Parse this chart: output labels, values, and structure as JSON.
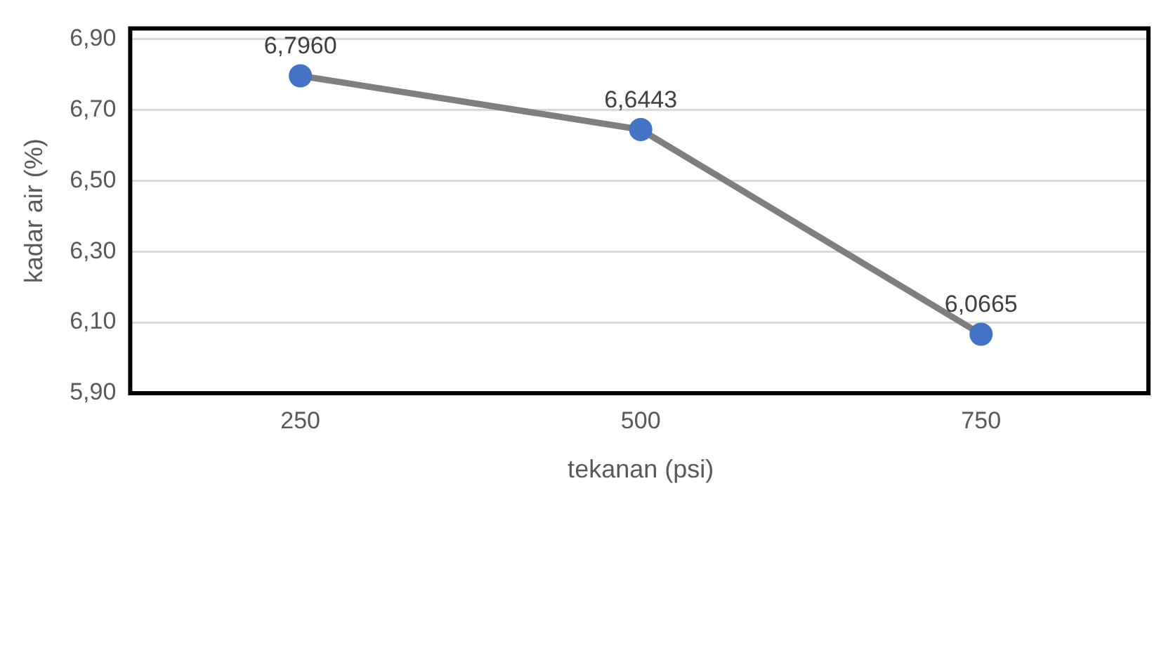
{
  "chart_data": {
    "type": "line",
    "xlabel": "tekanan (psi)",
    "ylabel": "kadar air (%)",
    "categories": [
      "250",
      "500",
      "750"
    ],
    "series": [
      {
        "color": "#7f7f7f",
        "colors": [
          "#4472c4",
          "#4472c4",
          "#4472c4"
        ],
        "values": [
          6.796,
          6.6443,
          6.0665
        ],
        "value_labels": [
          "6,7960",
          "6,6443",
          "6,0665"
        ]
      }
    ],
    "ylim": [
      5.9,
      6.93
    ],
    "yticks": [
      {
        "value": 5.9,
        "label": "5,90"
      },
      {
        "value": 6.1,
        "label": "6,10"
      },
      {
        "value": 6.3,
        "label": "6,30"
      },
      {
        "value": 6.5,
        "label": "6,50"
      },
      {
        "value": 6.7,
        "label": "6,70"
      },
      {
        "value": 6.9,
        "label": "6,90"
      }
    ],
    "grid": "y",
    "legend": false,
    "marker": "circle",
    "line_style": "solid"
  }
}
